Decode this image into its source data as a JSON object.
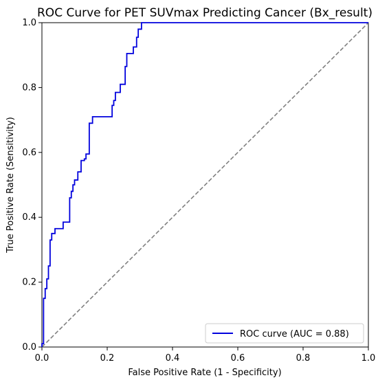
{
  "chart_data": {
    "type": "line",
    "title": "ROC Curve for PET SUVmax Predicting Cancer (Bx_result)",
    "xlabel": "False Positive Rate (1 - Specificity)",
    "ylabel": "True Positive Rate (Sensitivity)",
    "xlim": [
      0.0,
      1.0
    ],
    "ylim": [
      0.0,
      1.0
    ],
    "xticks": [
      0.0,
      0.2,
      0.4,
      0.6,
      0.8,
      1.0
    ],
    "yticks": [
      0.0,
      0.2,
      0.4,
      0.6,
      0.8,
      1.0
    ],
    "xtick_labels": [
      "0.0",
      "0.2",
      "0.4",
      "0.6",
      "0.8",
      "1.0"
    ],
    "ytick_labels": [
      "0.0",
      "0.2",
      "0.4",
      "0.6",
      "0.8",
      "1.0"
    ],
    "grid": false,
    "legend_placement": "lower-right",
    "series": [
      {
        "name": "ROC curve (AUC = 0.88)",
        "color": "#0000dd",
        "style": "solid",
        "points": [
          [
            0.0,
            0.0
          ],
          [
            0.0,
            0.01
          ],
          [
            0.005,
            0.01
          ],
          [
            0.005,
            0.15
          ],
          [
            0.01,
            0.15
          ],
          [
            0.01,
            0.18
          ],
          [
            0.015,
            0.18
          ],
          [
            0.015,
            0.21
          ],
          [
            0.02,
            0.21
          ],
          [
            0.02,
            0.25
          ],
          [
            0.025,
            0.25
          ],
          [
            0.025,
            0.33
          ],
          [
            0.03,
            0.33
          ],
          [
            0.03,
            0.35
          ],
          [
            0.04,
            0.35
          ],
          [
            0.04,
            0.365
          ],
          [
            0.065,
            0.365
          ],
          [
            0.065,
            0.385
          ],
          [
            0.085,
            0.385
          ],
          [
            0.085,
            0.46
          ],
          [
            0.09,
            0.46
          ],
          [
            0.09,
            0.48
          ],
          [
            0.095,
            0.48
          ],
          [
            0.095,
            0.5
          ],
          [
            0.1,
            0.5
          ],
          [
            0.1,
            0.515
          ],
          [
            0.11,
            0.515
          ],
          [
            0.11,
            0.54
          ],
          [
            0.12,
            0.54
          ],
          [
            0.12,
            0.575
          ],
          [
            0.13,
            0.575
          ],
          [
            0.13,
            0.58
          ],
          [
            0.135,
            0.58
          ],
          [
            0.135,
            0.595
          ],
          [
            0.145,
            0.595
          ],
          [
            0.145,
            0.69
          ],
          [
            0.155,
            0.69
          ],
          [
            0.155,
            0.71
          ],
          [
            0.215,
            0.71
          ],
          [
            0.215,
            0.745
          ],
          [
            0.22,
            0.745
          ],
          [
            0.22,
            0.76
          ],
          [
            0.225,
            0.76
          ],
          [
            0.225,
            0.785
          ],
          [
            0.24,
            0.785
          ],
          [
            0.24,
            0.81
          ],
          [
            0.255,
            0.81
          ],
          [
            0.255,
            0.865
          ],
          [
            0.26,
            0.865
          ],
          [
            0.26,
            0.905
          ],
          [
            0.28,
            0.905
          ],
          [
            0.28,
            0.925
          ],
          [
            0.29,
            0.925
          ],
          [
            0.29,
            0.955
          ],
          [
            0.295,
            0.955
          ],
          [
            0.295,
            0.98
          ],
          [
            0.305,
            0.98
          ],
          [
            0.305,
            1.0
          ],
          [
            1.0,
            1.0
          ]
        ]
      },
      {
        "name": "",
        "color": "#808080",
        "style": "dashed",
        "points": [
          [
            0.0,
            0.0
          ],
          [
            1.0,
            1.0
          ]
        ]
      }
    ]
  }
}
